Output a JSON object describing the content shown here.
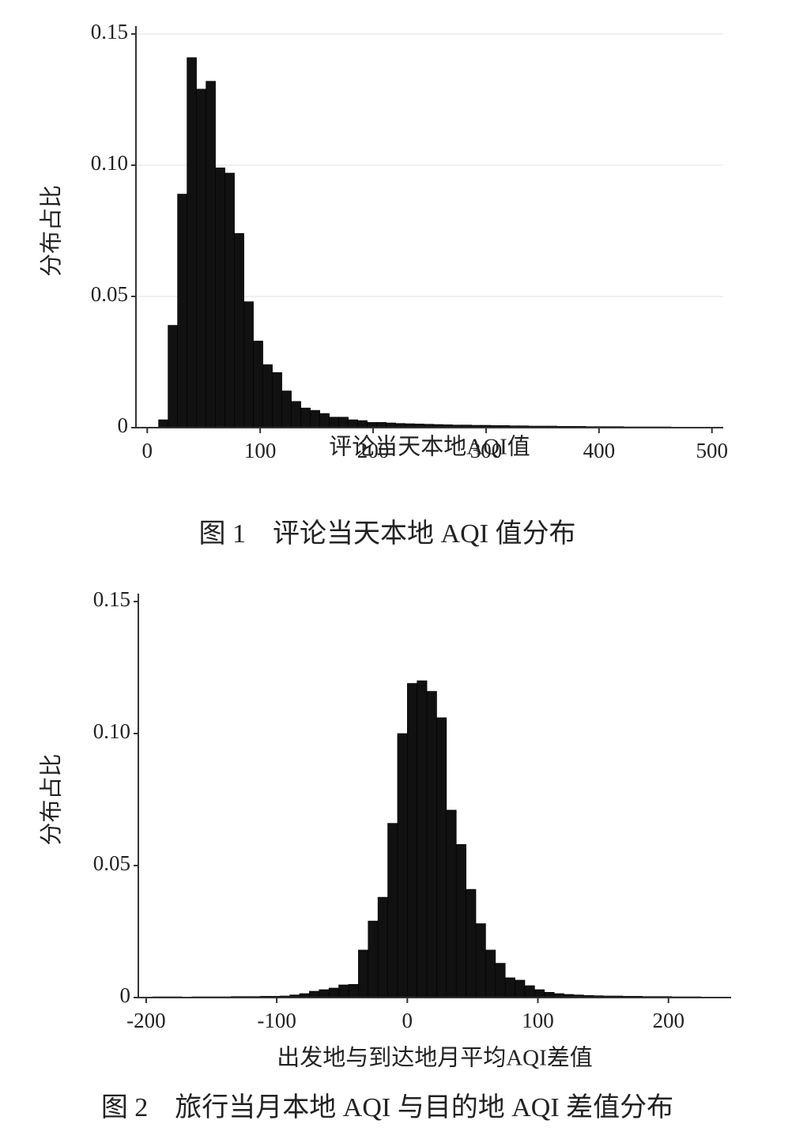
{
  "chart_data": [
    {
      "type": "histogram",
      "title": "图 1　评论当天本地 AQI 值分布",
      "xlabel": "评论当天本地AQI值",
      "ylabel": "分布占比",
      "color": "#111111",
      "grid": true,
      "bins": [
        10,
        18.4,
        26.8,
        35.2,
        43.6,
        52,
        60.4,
        68.8,
        77.2,
        85.6,
        94,
        102.4,
        110.8,
        119.2,
        127.6,
        136,
        144.4,
        152.8,
        161.2,
        169.6,
        178,
        186.4,
        194.8,
        203.2,
        211.6,
        220,
        228.4,
        236.8,
        245.2,
        253.6,
        262,
        270.4,
        278.8,
        287.2,
        295.6,
        304,
        312.4,
        320.8,
        329.2,
        337.6,
        346,
        354.4,
        362.8,
        371.2,
        379.6,
        388,
        396.4,
        404.8,
        413.2,
        421.6,
        430,
        438.4,
        446.8,
        455.2,
        463.6,
        472,
        480.4
      ],
      "values": [
        0.003,
        0.039,
        0.089,
        0.141,
        0.129,
        0.132,
        0.099,
        0.097,
        0.074,
        0.048,
        0.033,
        0.024,
        0.021,
        0.014,
        0.01,
        0.0075,
        0.0066,
        0.0054,
        0.004,
        0.004,
        0.003,
        0.0027,
        0.002,
        0.002,
        0.0018,
        0.0016,
        0.0015,
        0.0014,
        0.0013,
        0.0012,
        0.0011,
        0.001,
        0.001,
        0.0009,
        0.0009,
        0.0008,
        0.0008,
        0.0007,
        0.0007,
        0.0006,
        0.0006,
        0.0006,
        0.0005,
        0.0005,
        0.0005,
        0.0004,
        0.0004,
        0.0004,
        0.0004,
        0.0003,
        0.0003,
        0.0003,
        0.0003,
        0.0003,
        0.0002,
        0.0002
      ],
      "xlim": [
        -10,
        510
      ],
      "xticks": [
        0,
        100,
        200,
        300,
        400,
        500
      ],
      "ylim": [
        0,
        0.15
      ],
      "yticks": [
        0,
        0.05,
        {
          "value": 0.1,
          "label": "0.10"
        },
        0.15
      ]
    },
    {
      "type": "histogram",
      "title": "图 2　旅行当月本地 AQI 与目的地 AQI 差值分布",
      "xlabel": "出发地与到达地月平均AQI差值",
      "ylabel": "分布占比",
      "color": "#111111",
      "grid": false,
      "bins": [
        -195,
        -187.5,
        -180,
        -172.5,
        -165,
        -157.5,
        -150,
        -142.5,
        -135,
        -127.5,
        -120,
        -112.5,
        -105,
        -97.5,
        -90,
        -82.5,
        -75,
        -67.5,
        -60,
        -52.5,
        -45,
        -37.5,
        -30,
        -22.5,
        -15,
        -7.5,
        0,
        7.5,
        15,
        22.5,
        30,
        37.5,
        45,
        52.5,
        60,
        67.5,
        75,
        82.5,
        90,
        97.5,
        105,
        112.5,
        120,
        127.5,
        135,
        142.5,
        150,
        157.5,
        165,
        172.5,
        180,
        187.5,
        195,
        202.5,
        210,
        217.5,
        225,
        232.5,
        240,
        247.5
      ],
      "values": [
        0.0003,
        0.0003,
        0.0003,
        0.0002,
        0.0003,
        0.0003,
        0.0003,
        0.0003,
        0.0004,
        0.0004,
        0.0004,
        0.0005,
        0.0005,
        0.0006,
        0.001,
        0.0015,
        0.0024,
        0.003,
        0.0036,
        0.0048,
        0.005,
        0.018,
        0.029,
        0.038,
        0.066,
        0.1,
        0.119,
        0.12,
        0.116,
        0.106,
        0.071,
        0.058,
        0.041,
        0.028,
        0.018,
        0.013,
        0.0075,
        0.0066,
        0.0045,
        0.003,
        0.002,
        0.0015,
        0.0012,
        0.001,
        0.0008,
        0.0007,
        0.0006,
        0.0006,
        0.0005,
        0.0005,
        0.0004,
        0.0004,
        0.0004,
        0.0003,
        0.0003,
        0.0003,
        0.0002,
        0.0002,
        0.0002
      ],
      "xlim": [
        -206,
        248
      ],
      "xticks": [
        -200,
        -100,
        0,
        100,
        200
      ],
      "ylim": [
        0,
        0.15
      ],
      "yticks": [
        0,
        0.05,
        {
          "value": 0.1,
          "label": "0.10"
        },
        0.15
      ]
    }
  ]
}
